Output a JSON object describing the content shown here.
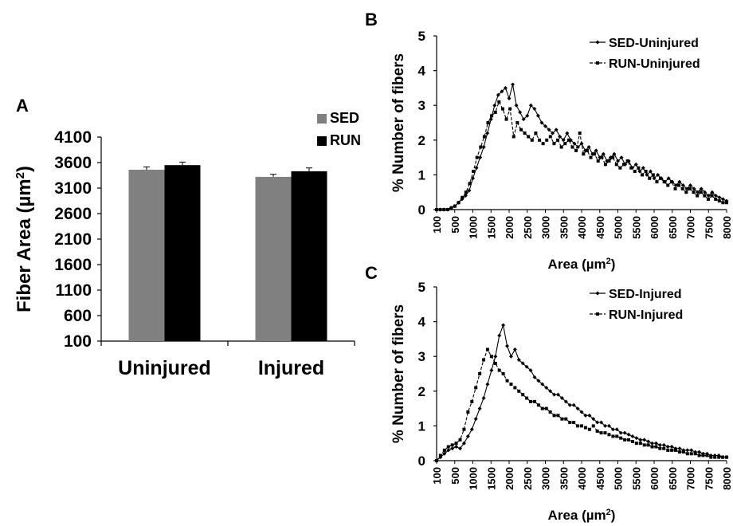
{
  "chart_data": [
    {
      "panel": "A",
      "type": "bar",
      "ylabel": "Fiber Area (µm²)",
      "ylabel_main": "Fiber Area (µm",
      "ylabel_sup": "2",
      "ylabel_close": ")",
      "ylim": [
        100,
        4100
      ],
      "yticks": [
        "4100",
        "3600",
        "3100",
        "2600",
        "2100",
        "1600",
        "1100",
        "600",
        "100"
      ],
      "categories": [
        "Uninjured",
        "Injured"
      ],
      "series": [
        {
          "name": "SED",
          "color": "#808080",
          "values": [
            3460,
            3320
          ],
          "errors": [
            55,
            50
          ]
        },
        {
          "name": "RUN",
          "color": "#000000",
          "values": [
            3550,
            3430
          ],
          "errors": [
            60,
            65
          ]
        }
      ],
      "legend_position": "top-right"
    },
    {
      "panel": "B",
      "type": "line",
      "ylabel": "% Number of fibers",
      "xlabel_main": "Area (µm",
      "xlabel_sup": "2",
      "xlabel_close": ")",
      "ylim": [
        0,
        5
      ],
      "yticks": [
        "0",
        "1",
        "2",
        "3",
        "4",
        "5"
      ],
      "xticks": [
        "100",
        "500",
        "1000",
        "1500",
        "2000",
        "2500",
        "3000",
        "3500",
        "4000",
        "4500",
        "5000",
        "5500",
        "6000",
        "6500",
        "7000",
        "7500",
        "8000"
      ],
      "bin_width": 100,
      "series": [
        {
          "name": "SED-Uninjured",
          "style": "solid",
          "marker": "diamond",
          "values": [
            0,
            0,
            0,
            0,
            0.05,
            0.1,
            0.2,
            0.3,
            0.4,
            0.55,
            0.9,
            1.2,
            1.5,
            1.8,
            2.2,
            2.6,
            3.0,
            3.3,
            3.4,
            3.5,
            3.2,
            3.6,
            3.0,
            2.8,
            2.6,
            2.7,
            3.0,
            2.9,
            2.7,
            2.5,
            2.4,
            2.3,
            2.2,
            2.3,
            2.1,
            2.0,
            2.2,
            2.0,
            1.9,
            1.8,
            1.9,
            1.7,
            1.8,
            1.6,
            1.7,
            1.5,
            1.6,
            1.4,
            1.5,
            1.6,
            1.4,
            1.5,
            1.3,
            1.4,
            1.2,
            1.3,
            1.1,
            1.2,
            1.0,
            1.1,
            0.9,
            1.0,
            0.9,
            0.8,
            0.9,
            0.8,
            0.7,
            0.8,
            0.7,
            0.6,
            0.7,
            0.6,
            0.5,
            0.6,
            0.5,
            0.4,
            0.5,
            0.4,
            0.35,
            0.3,
            0.25
          ]
        },
        {
          "name": "RUN-Uninjured",
          "style": "dashed",
          "marker": "square",
          "values": [
            0,
            0,
            0,
            0,
            0.05,
            0.1,
            0.2,
            0.35,
            0.5,
            0.75,
            1.1,
            1.5,
            1.8,
            2.1,
            2.5,
            2.7,
            2.8,
            3.1,
            2.9,
            2.6,
            2.9,
            2.1,
            2.5,
            2.3,
            2.2,
            2.1,
            2.0,
            2.2,
            2.0,
            1.9,
            2.0,
            2.1,
            1.9,
            2.0,
            1.8,
            1.9,
            2.0,
            1.8,
            1.7,
            2.2,
            1.6,
            1.7,
            1.5,
            1.6,
            1.4,
            1.5,
            1.3,
            1.4,
            1.5,
            1.3,
            1.2,
            1.3,
            1.4,
            1.2,
            1.1,
            1.2,
            1.0,
            1.1,
            0.9,
            1.0,
            0.8,
            0.9,
            0.8,
            0.7,
            0.8,
            0.6,
            0.7,
            0.6,
            0.5,
            0.6,
            0.5,
            0.4,
            0.5,
            0.4,
            0.3,
            0.4,
            0.3,
            0.25,
            0.2,
            0.2
          ]
        }
      ],
      "legend_position": "top-right"
    },
    {
      "panel": "C",
      "type": "line",
      "ylabel": "% Number of fibers",
      "xlabel_main": "Area (µm",
      "xlabel_sup": "2",
      "xlabel_close": ")",
      "ylim": [
        0,
        5
      ],
      "yticks": [
        "0",
        "1",
        "2",
        "3",
        "4",
        "5"
      ],
      "xticks": [
        "100",
        "500",
        "1000",
        "1500",
        "2000",
        "2500",
        "3000",
        "3500",
        "4000",
        "4500",
        "5000",
        "5500",
        "6000",
        "6500",
        "7000",
        "7500",
        "8000"
      ],
      "bin_width": 100,
      "series": [
        {
          "name": "SED-Injured",
          "style": "solid",
          "marker": "diamond",
          "values": [
            0,
            0.1,
            0.2,
            0.3,
            0.35,
            0.4,
            0.35,
            0.5,
            0.7,
            0.9,
            1.2,
            1.5,
            1.8,
            2.2,
            2.6,
            3.0,
            3.6,
            3.9,
            3.3,
            3.0,
            3.2,
            2.9,
            2.8,
            2.7,
            2.6,
            2.4,
            2.3,
            2.2,
            2.1,
            2.0,
            1.9,
            1.9,
            1.8,
            1.7,
            1.6,
            1.6,
            1.5,
            1.4,
            1.3,
            1.3,
            1.2,
            1.1,
            1.1,
            1.0,
            1.0,
            0.9,
            0.9,
            0.8,
            0.8,
            0.75,
            0.7,
            0.65,
            0.6,
            0.6,
            0.55,
            0.5,
            0.5,
            0.45,
            0.45,
            0.4,
            0.4,
            0.35,
            0.35,
            0.3,
            0.3,
            0.3,
            0.25,
            0.25,
            0.2,
            0.2,
            0.15,
            0.15,
            0.15,
            0.1,
            0.1
          ]
        },
        {
          "name": "RUN-Injured",
          "style": "dashed",
          "marker": "square",
          "values": [
            0,
            0.15,
            0.3,
            0.4,
            0.45,
            0.5,
            0.6,
            0.9,
            1.4,
            1.7,
            2.1,
            2.5,
            2.9,
            3.2,
            3.0,
            2.8,
            2.6,
            2.5,
            2.3,
            2.2,
            2.1,
            2.0,
            1.9,
            1.8,
            1.7,
            1.7,
            1.6,
            1.5,
            1.5,
            1.4,
            1.3,
            1.3,
            1.2,
            1.2,
            1.1,
            1.1,
            1.0,
            1.0,
            0.95,
            0.9,
            1.0,
            0.85,
            0.8,
            0.8,
            0.75,
            0.7,
            0.7,
            0.65,
            0.6,
            0.6,
            0.55,
            0.5,
            0.5,
            0.45,
            0.45,
            0.4,
            0.4,
            0.35,
            0.35,
            0.3,
            0.3,
            0.3,
            0.25,
            0.25,
            0.2,
            0.2,
            0.2,
            0.15,
            0.15,
            0.15,
            0.1,
            0.1,
            0.1,
            0.1,
            0.1
          ]
        }
      ],
      "legend_position": "top-right"
    }
  ]
}
